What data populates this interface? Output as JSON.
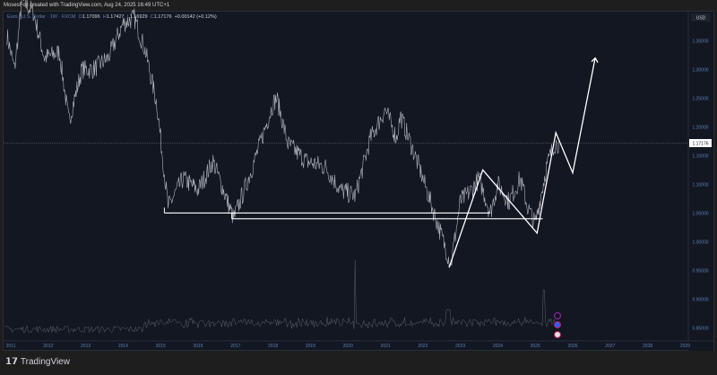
{
  "header": {
    "text": "MosesFox created with TradingView.com, Aug 24, 2025 16:49 UTC+1"
  },
  "legend": {
    "symbol": "Euro / U.S. Dollar · 1W · FXCM",
    "open_label": "O",
    "open": "1.17096",
    "high_label": "H",
    "high": "1.17427",
    "low_label": "L",
    "low": "1.16929",
    "close_label": "C",
    "close": "1.17176",
    "change": "+0.00142 (+0.12%)"
  },
  "axis": {
    "currency": "USD",
    "current_price": "1.17176"
  },
  "footer": {
    "brand": "TradingView"
  },
  "chart_data": {
    "type": "line",
    "title": "Euro / U.S. Dollar · 1W · FXCM",
    "y_ticks": [
      "1.35000",
      "1.30000",
      "1.25000",
      "1.20000",
      "1.15000",
      "1.10000",
      "1.05000",
      "1.00000",
      "0.95000",
      "0.90000",
      "0.85000"
    ],
    "x_ticks": [
      "2011",
      "2012",
      "2013",
      "2014",
      "2015",
      "2016",
      "2017",
      "2018",
      "2019",
      "2020",
      "2021",
      "2022",
      "2023",
      "2024",
      "2025",
      "2026",
      "2027",
      "2028",
      "2029"
    ],
    "ylim": [
      0.83,
      1.41
    ],
    "xlim": [
      2011,
      2029.4
    ],
    "price_keypoints": [
      [
        2010.9,
        1.36
      ],
      [
        2011.1,
        1.3
      ],
      [
        2011.3,
        1.42
      ],
      [
        2011.6,
        1.4
      ],
      [
        2011.9,
        1.32
      ],
      [
        2012.3,
        1.33
      ],
      [
        2012.55,
        1.21
      ],
      [
        2012.9,
        1.3
      ],
      [
        2013.2,
        1.3
      ],
      [
        2013.6,
        1.32
      ],
      [
        2014.0,
        1.38
      ],
      [
        2014.3,
        1.39
      ],
      [
        2014.6,
        1.33
      ],
      [
        2014.9,
        1.24
      ],
      [
        2015.1,
        1.12
      ],
      [
        2015.2,
        1.06
      ],
      [
        2015.6,
        1.11
      ],
      [
        2016.0,
        1.09
      ],
      [
        2016.4,
        1.14
      ],
      [
        2016.95,
        1.04
      ],
      [
        2017.4,
        1.12
      ],
      [
        2018.0,
        1.24
      ],
      [
        2018.1,
        1.25
      ],
      [
        2018.4,
        1.17
      ],
      [
        2018.9,
        1.14
      ],
      [
        2019.4,
        1.13
      ],
      [
        2019.8,
        1.09
      ],
      [
        2020.2,
        1.08
      ],
      [
        2020.6,
        1.18
      ],
      [
        2021.0,
        1.23
      ],
      [
        2021.3,
        1.18
      ],
      [
        2021.4,
        1.22
      ],
      [
        2021.9,
        1.13
      ],
      [
        2022.3,
        1.05
      ],
      [
        2022.75,
        0.96
      ],
      [
        2023.0,
        1.07
      ],
      [
        2023.3,
        1.09
      ],
      [
        2023.5,
        1.11
      ],
      [
        2023.8,
        1.05
      ],
      [
        2024.0,
        1.1
      ],
      [
        2024.3,
        1.07
      ],
      [
        2024.6,
        1.11
      ],
      [
        2024.8,
        1.06
      ],
      [
        2025.0,
        1.03
      ],
      [
        2025.3,
        1.13
      ],
      [
        2025.5,
        1.17
      ],
      [
        2025.65,
        1.172
      ]
    ],
    "drawings": {
      "support_lines": [
        {
          "from": [
            2015.1,
            1.05
          ],
          "to": [
            2023.8,
            1.05
          ]
        },
        {
          "from": [
            2016.9,
            1.04
          ],
          "to": [
            2025.2,
            1.04
          ]
        }
      ],
      "projection_path": [
        [
          2022.7,
          0.955
        ],
        [
          2023.6,
          1.125
        ],
        [
          2025.05,
          1.015
        ],
        [
          2025.55,
          1.19
        ],
        [
          2026.0,
          1.12
        ],
        [
          2026.6,
          1.32
        ]
      ]
    },
    "volume": "histogram"
  },
  "colors": {
    "background": "#131722",
    "price": "#b2b5be",
    "drawing": "#ffffff",
    "axis_text": "#5d7fb5"
  }
}
